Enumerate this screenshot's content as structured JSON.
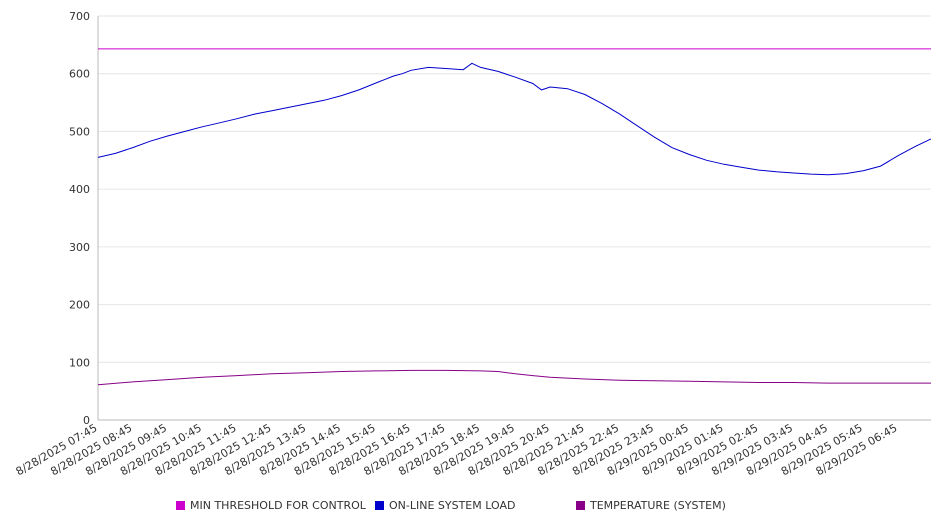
{
  "chart_data": {
    "type": "line",
    "title": "",
    "xlabel": "",
    "ylabel": "",
    "ylim": [
      0,
      700
    ],
    "yticks": [
      0,
      100,
      200,
      300,
      400,
      500,
      600,
      700
    ],
    "grid": true,
    "legend_position": "bottom",
    "categories": [
      "8/28/2025 07:45",
      "8/28/2025 08:45",
      "8/28/2025 09:45",
      "8/28/2025 10:45",
      "8/28/2025 11:45",
      "8/28/2025 12:45",
      "8/28/2025 13:45",
      "8/28/2025 14:45",
      "8/28/2025 15:45",
      "8/28/2025 16:45",
      "8/28/2025 17:45",
      "8/28/2025 18:45",
      "8/28/2025 19:45",
      "8/28/2025 20:45",
      "8/28/2025 21:45",
      "8/28/2025 22:45",
      "8/28/2025 23:45",
      "8/29/2025 00:45",
      "8/29/2025 01:45",
      "8/29/2025 02:45",
      "8/29/2025 03:45",
      "8/29/2025 04:45",
      "8/29/2025 05:45",
      "8/29/2025 06:45"
    ],
    "x_span_hours": 23.95,
    "series": [
      {
        "name": "MIN THRESHOLD FOR CONTROL",
        "color": "#cc00cc",
        "points": [
          [
            0,
            643
          ],
          [
            23.95,
            643
          ]
        ]
      },
      {
        "name": "ON-LINE SYSTEM LOAD",
        "color": "#0000cc",
        "points": [
          [
            0,
            455
          ],
          [
            0.5,
            462
          ],
          [
            1,
            472
          ],
          [
            1.5,
            483
          ],
          [
            2,
            492
          ],
          [
            2.5,
            500
          ],
          [
            3,
            508
          ],
          [
            3.5,
            515
          ],
          [
            4,
            522
          ],
          [
            4.5,
            530
          ],
          [
            5,
            536
          ],
          [
            5.5,
            542
          ],
          [
            6,
            548
          ],
          [
            6.5,
            554
          ],
          [
            7,
            562
          ],
          [
            7.5,
            572
          ],
          [
            8,
            584
          ],
          [
            8.5,
            596
          ],
          [
            8.75,
            600
          ],
          [
            9,
            606
          ],
          [
            9.5,
            611
          ],
          [
            10,
            609
          ],
          [
            10.5,
            607
          ],
          [
            10.75,
            618
          ],
          [
            11,
            611
          ],
          [
            11.5,
            604
          ],
          [
            12,
            594
          ],
          [
            12.5,
            583
          ],
          [
            12.75,
            572
          ],
          [
            13,
            577
          ],
          [
            13.5,
            574
          ],
          [
            14,
            564
          ],
          [
            14.5,
            548
          ],
          [
            15,
            530
          ],
          [
            15.5,
            510
          ],
          [
            16,
            490
          ],
          [
            16.5,
            472
          ],
          [
            17,
            460
          ],
          [
            17.5,
            450
          ],
          [
            18,
            443
          ],
          [
            18.5,
            438
          ],
          [
            19,
            433
          ],
          [
            19.5,
            430
          ],
          [
            20,
            428
          ],
          [
            20.5,
            426
          ],
          [
            21,
            425
          ],
          [
            21.5,
            427
          ],
          [
            22,
            432
          ],
          [
            22.5,
            440
          ],
          [
            23,
            458
          ],
          [
            23.5,
            474
          ],
          [
            23.95,
            487
          ]
        ]
      },
      {
        "name": "TEMPERATURE (SYSTEM)",
        "color": "#880088",
        "points": [
          [
            0,
            61
          ],
          [
            1,
            66
          ],
          [
            2,
            70
          ],
          [
            3,
            74
          ],
          [
            4,
            77
          ],
          [
            5,
            80
          ],
          [
            6,
            82
          ],
          [
            7,
            84
          ],
          [
            8,
            85
          ],
          [
            9,
            86
          ],
          [
            10,
            86
          ],
          [
            11,
            85
          ],
          [
            11.5,
            84
          ],
          [
            12,
            80
          ],
          [
            12.5,
            77
          ],
          [
            13,
            74
          ],
          [
            14,
            71
          ],
          [
            15,
            69
          ],
          [
            16,
            68
          ],
          [
            17,
            67
          ],
          [
            18,
            66
          ],
          [
            19,
            65
          ],
          [
            20,
            65
          ],
          [
            21,
            64
          ],
          [
            22,
            64
          ],
          [
            23,
            64
          ],
          [
            23.95,
            64
          ]
        ]
      }
    ]
  }
}
